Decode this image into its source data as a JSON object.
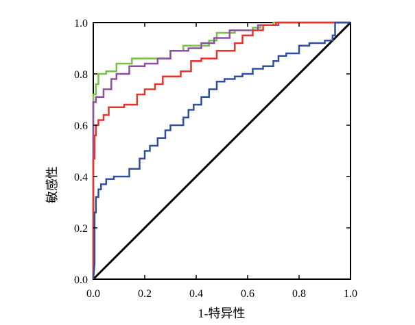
{
  "chart_data": {
    "type": "line",
    "title": "",
    "xlabel": "1-特异性",
    "ylabel": "敏感性",
    "xlim": [
      0,
      1
    ],
    "ylim": [
      0,
      1
    ],
    "x_ticks": [
      "0.0",
      "0.2",
      "0.4",
      "0.6",
      "0.8",
      "1.0"
    ],
    "y_ticks": [
      "0.0",
      "0.2",
      "0.4",
      "0.6",
      "0.8",
      "1.0"
    ],
    "grid": false,
    "legend": "none",
    "reference_line": {
      "x": [
        0,
        1
      ],
      "y": [
        0,
        1
      ],
      "color": "#000000"
    },
    "series": [
      {
        "color": "#7ac143",
        "x": [
          0,
          0,
          0.01,
          0.01,
          0.02,
          0.02,
          0.05,
          0.05,
          0.09,
          0.09,
          0.15,
          0.15,
          0.3,
          0.3,
          0.35,
          0.35,
          0.45,
          0.45,
          0.48,
          0.48,
          0.55,
          0.55,
          0.62,
          0.62,
          0.65,
          0.65,
          0.7,
          0.7,
          0.8,
          0.8,
          0.9,
          1
        ],
        "y": [
          0,
          0.72,
          0.72,
          0.76,
          0.76,
          0.8,
          0.8,
          0.81,
          0.81,
          0.84,
          0.84,
          0.86,
          0.86,
          0.89,
          0.89,
          0.91,
          0.91,
          0.93,
          0.93,
          0.96,
          0.96,
          0.97,
          0.97,
          0.98,
          0.98,
          0.99,
          0.99,
          1,
          1,
          1,
          1,
          1
        ]
      },
      {
        "color": "#8e4ea2",
        "x": [
          0,
          0,
          0.01,
          0.01,
          0.04,
          0.04,
          0.07,
          0.07,
          0.09,
          0.09,
          0.14,
          0.14,
          0.2,
          0.2,
          0.25,
          0.25,
          0.3,
          0.3,
          0.37,
          0.37,
          0.42,
          0.42,
          0.47,
          0.47,
          0.53,
          0.53,
          0.64,
          0.64,
          0.72,
          0.72,
          0.8,
          0.8,
          0.94,
          1
        ],
        "y": [
          0,
          0.69,
          0.69,
          0.71,
          0.71,
          0.74,
          0.74,
          0.78,
          0.78,
          0.8,
          0.8,
          0.83,
          0.83,
          0.84,
          0.84,
          0.86,
          0.86,
          0.89,
          0.89,
          0.9,
          0.9,
          0.92,
          0.92,
          0.94,
          0.94,
          0.97,
          0.97,
          0.99,
          0.99,
          1,
          1,
          1,
          1,
          1
        ]
      },
      {
        "color": "#e8322c",
        "x": [
          0,
          0,
          0.005,
          0.005,
          0.01,
          0.01,
          0.02,
          0.02,
          0.04,
          0.04,
          0.06,
          0.06,
          0.12,
          0.12,
          0.17,
          0.17,
          0.2,
          0.2,
          0.24,
          0.24,
          0.27,
          0.27,
          0.34,
          0.34,
          0.38,
          0.38,
          0.42,
          0.42,
          0.48,
          0.48,
          0.55,
          0.55,
          0.58,
          0.58,
          0.62,
          0.62,
          0.66,
          0.66,
          0.71,
          0.71,
          0.75,
          0.75,
          1
        ],
        "y": [
          0,
          0.47,
          0.47,
          0.56,
          0.56,
          0.6,
          0.6,
          0.62,
          0.62,
          0.64,
          0.64,
          0.67,
          0.67,
          0.68,
          0.68,
          0.72,
          0.72,
          0.74,
          0.74,
          0.76,
          0.76,
          0.79,
          0.79,
          0.81,
          0.81,
          0.85,
          0.85,
          0.86,
          0.86,
          0.89,
          0.89,
          0.92,
          0.92,
          0.95,
          0.95,
          0.97,
          0.97,
          0.99,
          0.99,
          1,
          1,
          1,
          1
        ]
      },
      {
        "color": "#2f4e9e",
        "x": [
          0,
          0.005,
          0.005,
          0.01,
          0.01,
          0.02,
          0.02,
          0.03,
          0.03,
          0.05,
          0.05,
          0.08,
          0.08,
          0.14,
          0.14,
          0.18,
          0.18,
          0.2,
          0.2,
          0.22,
          0.22,
          0.25,
          0.25,
          0.28,
          0.28,
          0.3,
          0.3,
          0.35,
          0.35,
          0.37,
          0.37,
          0.39,
          0.39,
          0.42,
          0.42,
          0.45,
          0.45,
          0.48,
          0.48,
          0.51,
          0.51,
          0.55,
          0.55,
          0.58,
          0.58,
          0.62,
          0.62,
          0.66,
          0.66,
          0.7,
          0.7,
          0.72,
          0.72,
          0.75,
          0.75,
          0.8,
          0.8,
          0.84,
          0.84,
          0.9,
          0.9,
          0.93,
          0.93,
          0.94,
          0.94,
          1
        ],
        "y": [
          0,
          0.06,
          0.26,
          0.26,
          0.32,
          0.32,
          0.35,
          0.35,
          0.37,
          0.37,
          0.39,
          0.39,
          0.4,
          0.4,
          0.43,
          0.43,
          0.47,
          0.47,
          0.5,
          0.5,
          0.52,
          0.52,
          0.55,
          0.55,
          0.58,
          0.58,
          0.6,
          0.6,
          0.63,
          0.63,
          0.66,
          0.66,
          0.68,
          0.68,
          0.71,
          0.71,
          0.74,
          0.74,
          0.77,
          0.77,
          0.78,
          0.78,
          0.79,
          0.79,
          0.8,
          0.8,
          0.82,
          0.82,
          0.83,
          0.83,
          0.85,
          0.85,
          0.87,
          0.87,
          0.88,
          0.88,
          0.91,
          0.91,
          0.92,
          0.92,
          0.93,
          0.93,
          0.95,
          0.95,
          1,
          1
        ]
      }
    ]
  }
}
